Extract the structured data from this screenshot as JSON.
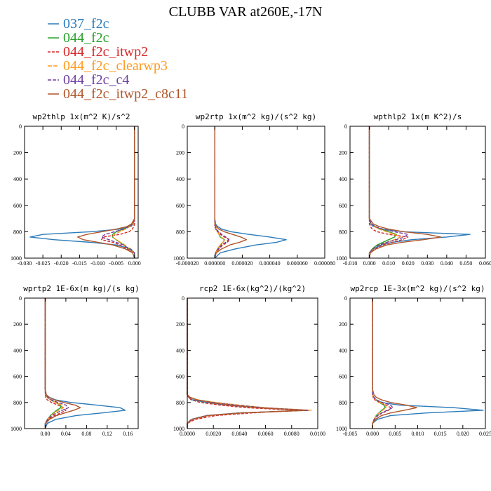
{
  "title": "CLUBB VAR at260E,-17N",
  "legend": [
    {
      "label": "037_f2c",
      "color": "#2b7bba",
      "dash": ""
    },
    {
      "label": "044_f2c",
      "color": "#2ca02c",
      "dash": ""
    },
    {
      "label": "044_f2c_itwp2",
      "color": "#d62728",
      "dash": "4,2"
    },
    {
      "label": "044_f2c_clearwp3",
      "color": "#ff9a1f",
      "dash": "6,2"
    },
    {
      "label": "044_f2c_c4",
      "color": "#6f3fa0",
      "dash": "5,2"
    },
    {
      "label": "044_f2c_itwp2_c8c11",
      "color": "#b0562a",
      "dash": ""
    }
  ],
  "chart_data": [
    {
      "type": "line",
      "title": "wp2thlp  1x(m^2 K)/s^2",
      "xlim": [
        -0.03,
        0.001
      ],
      "ylim": [
        1000,
        0
      ],
      "xticks": [
        -0.03,
        -0.025,
        -0.02,
        -0.015,
        -0.01,
        -0.005,
        0.0
      ],
      "xticklabels": [
        "-0.030",
        "-0.025",
        "-0.020",
        "-0.015",
        "-0.010",
        "-0.005",
        "0.000"
      ],
      "yticks": [
        0,
        200,
        400,
        600,
        800,
        1000
      ],
      "y": [
        0,
        200,
        400,
        600,
        700,
        740,
        760,
        780,
        800,
        820,
        840,
        860,
        880,
        900,
        930,
        960,
        1000
      ],
      "series": [
        {
          "name": "037_f2c",
          "values": [
            0,
            0,
            0,
            0,
            0,
            -0.0003,
            -0.001,
            -0.004,
            -0.012,
            -0.025,
            -0.0285,
            -0.022,
            -0.012,
            -0.005,
            -0.001,
            0,
            0
          ]
        },
        {
          "name": "044_f2c",
          "values": [
            0,
            0,
            0,
            0,
            0,
            -0.0005,
            -0.0015,
            -0.003,
            -0.005,
            -0.006,
            -0.006,
            -0.005,
            -0.004,
            -0.003,
            -0.0015,
            0,
            0
          ]
        },
        {
          "name": "044_f2c_itwp2",
          "values": [
            0,
            0,
            0,
            0,
            0,
            0,
            -0.0002,
            -0.0006,
            -0.0015,
            -0.004,
            -0.0085,
            -0.009,
            -0.006,
            -0.004,
            -0.002,
            -0.0005,
            0
          ]
        },
        {
          "name": "044_f2c_clearwp3",
          "values": [
            0,
            0,
            0,
            0,
            0,
            -0.0004,
            -0.0012,
            -0.0025,
            -0.004,
            -0.0055,
            -0.006,
            -0.005,
            -0.0038,
            -0.0027,
            -0.0013,
            0,
            0
          ]
        },
        {
          "name": "044_f2c_c4",
          "values": [
            0,
            0,
            0,
            0,
            0,
            -0.0005,
            -0.0015,
            -0.003,
            -0.0055,
            -0.008,
            -0.009,
            -0.007,
            -0.005,
            -0.003,
            -0.0015,
            0,
            0
          ]
        },
        {
          "name": "044_f2c_itwp2_c8c11",
          "values": [
            0,
            0,
            0,
            0,
            0,
            -0.0008,
            -0.002,
            -0.005,
            -0.009,
            -0.013,
            -0.0155,
            -0.014,
            -0.01,
            -0.006,
            -0.0025,
            -0.0005,
            0
          ]
        }
      ]
    },
    {
      "type": "line",
      "title": "wp2rtp  1x(m^2 kg)/(s^2 kg)",
      "xlim": [
        -2e-05,
        8e-05
      ],
      "ylim": [
        1000,
        0
      ],
      "xticks": [
        -2e-05,
        0,
        2e-05,
        4e-05,
        6e-05,
        8e-05
      ],
      "xticklabels": [
        "-0.000020",
        "0.000000",
        "0.000020",
        "0.000040",
        "0.000060",
        "0.000080"
      ],
      "yticks": [
        0,
        200,
        400,
        600,
        800,
        1000
      ],
      "y": [
        0,
        200,
        400,
        600,
        700,
        740,
        760,
        780,
        800,
        820,
        840,
        860,
        880,
        900,
        930,
        960,
        1000
      ],
      "series": [
        {
          "name": "037_f2c",
          "values": [
            0,
            0,
            0,
            0,
            0,
            5e-07,
            2e-06,
            5e-06,
            1.2e-05,
            2.5e-05,
            4e-05,
            5.2e-05,
            4.5e-05,
            3e-05,
            1.5e-05,
            4e-06,
            0
          ]
        },
        {
          "name": "044_f2c",
          "values": [
            0,
            0,
            0,
            0,
            0,
            0,
            5e-07,
            1e-06,
            2e-06,
            3e-06,
            4e-06,
            7e-06,
            6e-06,
            4e-06,
            2e-06,
            5e-07,
            0
          ]
        },
        {
          "name": "044_f2c_itwp2",
          "values": [
            0,
            0,
            0,
            0,
            0,
            0,
            0,
            5e-07,
            2e-06,
            4e-06,
            7e-06,
            1.1e-05,
            9e-06,
            6e-06,
            3e-06,
            1e-06,
            0
          ]
        },
        {
          "name": "044_f2c_clearwp3",
          "values": [
            0,
            0,
            0,
            0,
            0,
            0,
            5e-07,
            1e-06,
            2e-06,
            3e-06,
            4.5e-06,
            7.5e-06,
            6e-06,
            4e-06,
            2e-06,
            5e-07,
            0
          ]
        },
        {
          "name": "044_f2c_c4",
          "values": [
            0,
            0,
            0,
            0,
            0,
            0,
            5e-07,
            1e-06,
            3e-06,
            5e-06,
            8e-06,
            1e-05,
            8e-06,
            5e-06,
            2.5e-06,
            5e-07,
            0
          ]
        },
        {
          "name": "044_f2c_itwp2_c8c11",
          "values": [
            0,
            0,
            0,
            0,
            0,
            5e-07,
            1e-06,
            3e-06,
            7e-06,
            1.3e-05,
            1.9e-05,
            2.3e-05,
            1.8e-05,
            1.1e-05,
            5e-06,
            1e-06,
            0
          ]
        }
      ]
    },
    {
      "type": "line",
      "title": "wpthlp2  1x(m K^2)/s",
      "xlim": [
        -0.01,
        0.06
      ],
      "ylim": [
        1000,
        0
      ],
      "xticks": [
        -0.01,
        0,
        0.01,
        0.02,
        0.03,
        0.04,
        0.05,
        0.06
      ],
      "xticklabels": [
        "-0.010",
        "0.000",
        "0.010",
        "0.020",
        "0.030",
        "0.040",
        "0.050",
        "0.060"
      ],
      "yticks": [
        0,
        200,
        400,
        600,
        800,
        1000
      ],
      "y": [
        0,
        200,
        400,
        600,
        700,
        740,
        760,
        780,
        800,
        820,
        840,
        860,
        880,
        900,
        930,
        960,
        1000
      ],
      "series": [
        {
          "name": "037_f2c",
          "values": [
            0,
            0,
            0,
            0,
            0,
            0.0005,
            0.002,
            0.006,
            0.018,
            0.052,
            0.04,
            0.022,
            0.012,
            0.006,
            0.002,
            0,
            0
          ]
        },
        {
          "name": "044_f2c",
          "values": [
            0,
            0,
            0,
            0,
            0,
            0.001,
            0.003,
            0.006,
            0.01,
            0.014,
            0.013,
            0.01,
            0.007,
            0.004,
            0.0015,
            0,
            0
          ]
        },
        {
          "name": "044_f2c_itwp2",
          "values": [
            0,
            0,
            0,
            0,
            0,
            0,
            0.0005,
            0.0015,
            0.004,
            0.01,
            0.02,
            0.017,
            0.012,
            0.007,
            0.003,
            0.0005,
            0
          ]
        },
        {
          "name": "044_f2c_clearwp3",
          "values": [
            0,
            0,
            0,
            0,
            0,
            0.001,
            0.0025,
            0.005,
            0.009,
            0.013,
            0.016,
            0.013,
            0.009,
            0.005,
            0.002,
            0,
            0
          ]
        },
        {
          "name": "044_f2c_c4",
          "values": [
            0,
            0,
            0,
            0,
            0,
            0.001,
            0.003,
            0.007,
            0.013,
            0.02,
            0.018,
            0.014,
            0.009,
            0.005,
            0.002,
            0,
            0
          ]
        },
        {
          "name": "044_f2c_itwp2_c8c11",
          "values": [
            0,
            0,
            0,
            0,
            0,
            0.002,
            0.005,
            0.01,
            0.018,
            0.03,
            0.037,
            0.028,
            0.017,
            0.009,
            0.0035,
            0.0005,
            0
          ]
        }
      ]
    },
    {
      "type": "line",
      "title": "wprtp2  1E-6x(m kg)/(s kg)",
      "xlim": [
        -0.04,
        0.18
      ],
      "ylim": [
        1000,
        0
      ],
      "xticks": [
        0,
        0.04,
        0.08,
        0.12,
        0.16
      ],
      "xticklabels": [
        "0.00",
        "0.04",
        "0.08",
        "0.12",
        "0.16"
      ],
      "yticks": [
        0,
        200,
        400,
        600,
        800,
        1000
      ],
      "y": [
        0,
        200,
        400,
        600,
        700,
        740,
        760,
        780,
        800,
        820,
        840,
        860,
        880,
        900,
        930,
        960,
        1000
      ],
      "series": [
        {
          "name": "037_f2c",
          "values": [
            0,
            0,
            0,
            0,
            0,
            0.002,
            0.008,
            0.02,
            0.05,
            0.1,
            0.145,
            0.155,
            0.11,
            0.06,
            0.02,
            0.004,
            0
          ]
        },
        {
          "name": "044_f2c",
          "values": [
            0,
            0,
            0,
            0,
            0,
            0.001,
            0.004,
            0.01,
            0.02,
            0.03,
            0.03,
            0.022,
            0.016,
            0.01,
            0.004,
            0,
            0
          ]
        },
        {
          "name": "044_f2c_itwp2",
          "values": [
            0,
            0,
            0,
            0,
            0,
            0,
            0.001,
            0.004,
            0.012,
            0.025,
            0.035,
            0.04,
            0.03,
            0.018,
            0.006,
            0.001,
            0
          ]
        },
        {
          "name": "044_f2c_clearwp3",
          "values": [
            0,
            0,
            0,
            0,
            0,
            0.001,
            0.004,
            0.01,
            0.02,
            0.032,
            0.035,
            0.026,
            0.018,
            0.011,
            0.004,
            0,
            0
          ]
        },
        {
          "name": "044_f2c_c4",
          "values": [
            0,
            0,
            0,
            0,
            0,
            0.001,
            0.005,
            0.012,
            0.025,
            0.04,
            0.045,
            0.033,
            0.022,
            0.013,
            0.005,
            0,
            0
          ]
        },
        {
          "name": "044_f2c_itwp2_c8c11",
          "values": [
            0,
            0,
            0,
            0,
            0,
            0.002,
            0.007,
            0.018,
            0.036,
            0.058,
            0.068,
            0.055,
            0.038,
            0.022,
            0.008,
            0.001,
            0
          ]
        }
      ]
    },
    {
      "type": "line",
      "title": "rcp2  1E-6x(kg^2)/(kg^2)",
      "xlim": [
        0,
        0.01
      ],
      "ylim": [
        1000,
        0
      ],
      "xticks": [
        0,
        0.002,
        0.004,
        0.006,
        0.008,
        0.01
      ],
      "xticklabels": [
        "0.0000",
        "0.0020",
        "0.0040",
        "0.0060",
        "0.0080",
        "0.0100"
      ],
      "yticks": [
        0,
        200,
        400,
        600,
        800,
        1000
      ],
      "y": [
        0,
        200,
        400,
        600,
        700,
        740,
        760,
        780,
        800,
        820,
        840,
        860,
        880,
        900,
        930,
        960,
        1000
      ],
      "series": [
        {
          "name": "037_f2c",
          "values": [
            0,
            0,
            0,
            0,
            0,
            0,
            0.0001,
            0.0004,
            0.0015,
            0.003,
            0.0055,
            0.0093,
            0.004,
            0.0015,
            0.0003,
            0,
            0
          ]
        },
        {
          "name": "044_f2c",
          "values": [
            0,
            0,
            0,
            0,
            0,
            0,
            0.0002,
            0.0008,
            0.002,
            0.0035,
            0.0055,
            0.0092,
            0.004,
            0.0015,
            0.0003,
            0,
            0
          ]
        },
        {
          "name": "044_f2c_itwp2",
          "values": [
            0,
            0,
            0,
            0,
            0,
            0,
            0.0001,
            0.0003,
            0.001,
            0.0025,
            0.0045,
            0.0085,
            0.005,
            0.0022,
            0.0006,
            0,
            0
          ]
        },
        {
          "name": "044_f2c_clearwp3",
          "values": [
            0,
            0,
            0,
            0,
            0,
            0,
            0.0002,
            0.0008,
            0.0022,
            0.004,
            0.006,
            0.0095,
            0.0042,
            0.0016,
            0.0003,
            0,
            0
          ]
        },
        {
          "name": "044_f2c_c4",
          "values": [
            0,
            0,
            0,
            0,
            0,
            0,
            0.0002,
            0.0007,
            0.002,
            0.0037,
            0.0058,
            0.0093,
            0.0041,
            0.0015,
            0.0003,
            0,
            0
          ]
        },
        {
          "name": "044_f2c_itwp2_c8c11",
          "values": [
            0,
            0,
            0,
            0,
            0,
            0,
            0.0002,
            0.0007,
            0.0018,
            0.0033,
            0.0053,
            0.009,
            0.0042,
            0.0016,
            0.0004,
            0,
            0
          ]
        }
      ]
    },
    {
      "type": "line",
      "title": "wp2rcp  1E-3x(m^2 kg)/(s^2 kg)",
      "xlim": [
        -0.005,
        0.025
      ],
      "ylim": [
        1000,
        0
      ],
      "xticks": [
        -0.005,
        0,
        0.005,
        0.01,
        0.015,
        0.02,
        0.025
      ],
      "xticklabels": [
        "-0.005",
        "0.000",
        "0.005",
        "0.010",
        "0.015",
        "0.020",
        "0.025"
      ],
      "yticks": [
        0,
        200,
        400,
        600,
        800,
        1000
      ],
      "y": [
        0,
        200,
        400,
        600,
        700,
        740,
        760,
        780,
        800,
        820,
        840,
        860,
        880,
        900,
        930,
        960,
        1000
      ],
      "series": [
        {
          "name": "037_f2c",
          "values": [
            0,
            0,
            0,
            0,
            0,
            0,
            0.0002,
            0.0008,
            0.002,
            0.006,
            0.018,
            0.0245,
            0.012,
            0.004,
            0.001,
            0,
            0
          ]
        },
        {
          "name": "044_f2c",
          "values": [
            0,
            0,
            0,
            0,
            0,
            0,
            0.0002,
            0.0006,
            0.0015,
            0.0025,
            0.0028,
            0.002,
            0.0014,
            0.0008,
            0.0003,
            0,
            0
          ]
        },
        {
          "name": "044_f2c_itwp2",
          "values": [
            0,
            0,
            0,
            0,
            0,
            0,
            0.0001,
            0.0005,
            0.0015,
            0.003,
            0.004,
            0.0035,
            0.0022,
            0.0012,
            0.0004,
            0,
            0
          ]
        },
        {
          "name": "044_f2c_clearwp3",
          "values": [
            0,
            0,
            0,
            0,
            0,
            0,
            0.0002,
            0.0007,
            0.0017,
            0.0028,
            0.003,
            0.0022,
            0.0015,
            0.0009,
            0.0003,
            0,
            0
          ]
        },
        {
          "name": "044_f2c_c4",
          "values": [
            0,
            0,
            0,
            0,
            0,
            0,
            0.0003,
            0.0009,
            0.0022,
            0.004,
            0.0045,
            0.0032,
            0.002,
            0.0011,
            0.0004,
            0,
            0
          ]
        },
        {
          "name": "044_f2c_itwp2_c8c11",
          "values": [
            0,
            0,
            0,
            0,
            0,
            0.0003,
            0.0008,
            0.002,
            0.004,
            0.0075,
            0.0098,
            0.007,
            0.004,
            0.002,
            0.0006,
            0,
            0
          ]
        }
      ]
    }
  ]
}
